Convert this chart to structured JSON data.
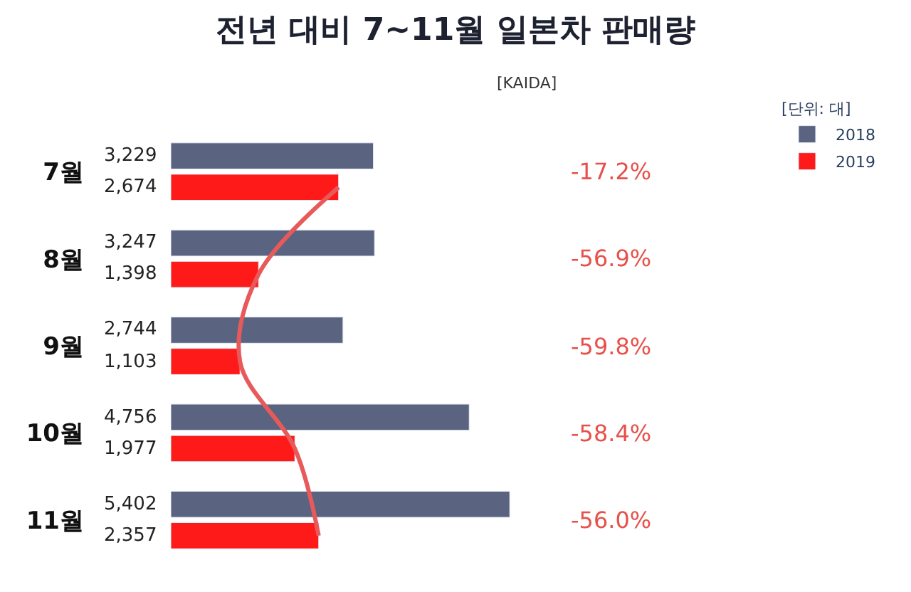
{
  "chart_data": {
    "type": "bar",
    "orientation": "horizontal",
    "title": "전년 대비 7~11월 일본차 판매량",
    "subtitle": "[KAIDA]",
    "legend_title": "[단위: 대]",
    "legend": "top right",
    "categories": [
      "7월",
      "8월",
      "9월",
      "10월",
      "11월"
    ],
    "series": [
      {
        "name": "2018",
        "color": "#5a6480",
        "values": [
          3229,
          3247,
          2744,
          4756,
          5402
        ],
        "value_labels": [
          "3,229",
          "3,247",
          "2,744",
          "4,756",
          "5,402"
        ]
      },
      {
        "name": "2019",
        "color": "#ff1a1a",
        "values": [
          2674,
          1398,
          1103,
          1977,
          2357
        ],
        "value_labels": [
          "2,674",
          "1,398",
          "1,103",
          "1,977",
          "2,357"
        ]
      },
      {
        "type": "line",
        "color": "#e85a5a",
        "values": [
          2674,
          1398,
          1103,
          1977,
          2357
        ]
      }
    ],
    "annotations": [
      "-17.2%",
      "-56.9%",
      "-59.8%",
      "-58.4%",
      "-56.0%"
    ]
  }
}
